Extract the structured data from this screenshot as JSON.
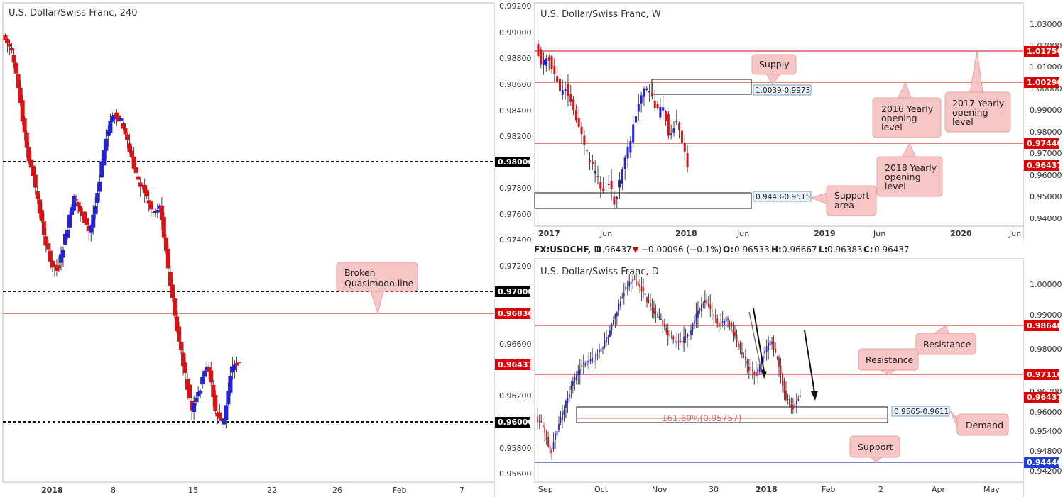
{
  "colors": {
    "up": "#2222dd",
    "down": "#dd1111",
    "level": "#cc0000",
    "support_line": "#000080",
    "tag_red": "#dd0000",
    "tag_blue": "#1f3fd0",
    "callout_fill": "#f6c6c6",
    "callout_border": "#e6a3a3",
    "zone_label_fill": "#eaf3fb",
    "fib_text": "#e06060"
  },
  "panels": {
    "h4": {
      "title": "U.S. Dollar/Swiss Franc, 240",
      "price_ticks": [
        "0.99200",
        "0.99000",
        "0.98800",
        "0.98600",
        "0.98400",
        "0.98200",
        "0.97800",
        "0.97600",
        "0.97400",
        "0.97200",
        "0.96600",
        "0.96200",
        "0.95800",
        "0.95600"
      ],
      "date_ticks": [
        "2018",
        "8",
        "15",
        "22",
        "26",
        "Feb",
        "7"
      ],
      "tags": [
        {
          "label": "0.98000",
          "style": "black"
        },
        {
          "label": "0.97000",
          "style": "black"
        },
        {
          "label": "0.96830",
          "style": "red"
        },
        {
          "label": "0.96437",
          "style": "red"
        },
        {
          "label": "0.96000",
          "style": "black"
        }
      ],
      "annotations": [
        {
          "text_lines": [
            "Broken",
            "Quasimodo line"
          ]
        }
      ]
    },
    "weekly": {
      "title": "U.S. Dollar/Swiss Franc, W",
      "price_ticks": [
        "1.03000",
        "1.02000",
        "1.01000",
        "1.00000",
        "0.99000",
        "0.98000",
        "0.97000",
        "0.96000",
        "0.95000",
        "0.94000"
      ],
      "date_ticks": [
        "2017",
        "Jun",
        "2018",
        "Jun",
        "2019",
        "Jun",
        "2020",
        "Jun"
      ],
      "tags": [
        {
          "label": "1.01750",
          "style": "red"
        },
        {
          "label": "1.00290",
          "style": "red"
        },
        {
          "label": "0.97440",
          "style": "red"
        },
        {
          "label": "0.96437",
          "style": "red"
        }
      ],
      "zones": [
        {
          "label": "1.0039-0.9973"
        },
        {
          "label": "0.9443-0.9515"
        }
      ],
      "annotations": [
        {
          "text_lines": [
            "Supply"
          ]
        },
        {
          "text_lines": [
            "2016 Yearly",
            "opening",
            "level"
          ]
        },
        {
          "text_lines": [
            "2017 Yearly",
            "opening",
            "level"
          ]
        },
        {
          "text_lines": [
            "2018 Yearly",
            "opening",
            "level"
          ]
        },
        {
          "text_lines": [
            "Support",
            "area"
          ]
        }
      ]
    },
    "daily": {
      "title": "U.S. Dollar/Swiss Franc, D",
      "info_bar": {
        "symbol": "FX:USDCHF, D",
        "last": "0.96437",
        "change": "−0.00096 (−0.1%)",
        "open_label": "O:",
        "open": "0.96533",
        "high_label": "H:",
        "high": "0.96667",
        "low_label": "L:",
        "low": "0.96383",
        "close_label": "C:",
        "close": "0.96437"
      },
      "price_ticks": [
        "1.00000",
        "0.99000",
        "0.98000",
        "0.96200",
        "0.96000",
        "0.95400",
        "0.94800",
        "0.94200"
      ],
      "date_ticks": [
        "Sep",
        "Oct",
        "Nov",
        "30",
        "2018",
        "Feb",
        "2",
        "Apr",
        "May"
      ],
      "tags": [
        {
          "label": "0.98640",
          "style": "red"
        },
        {
          "label": "0.97110",
          "style": "red"
        },
        {
          "label": "0.96437",
          "style": "red"
        },
        {
          "label": "0.94440",
          "style": "blue"
        }
      ],
      "zones": [
        {
          "label": "0.9565-0.9611"
        }
      ],
      "fib_label": "161.80%(0.95757)",
      "annotations": [
        {
          "text_lines": [
            "Resistance"
          ]
        },
        {
          "text_lines": [
            "Resistance"
          ]
        },
        {
          "text_lines": [
            "Demand"
          ]
        },
        {
          "text_lines": [
            "Support"
          ]
        }
      ]
    }
  }
}
